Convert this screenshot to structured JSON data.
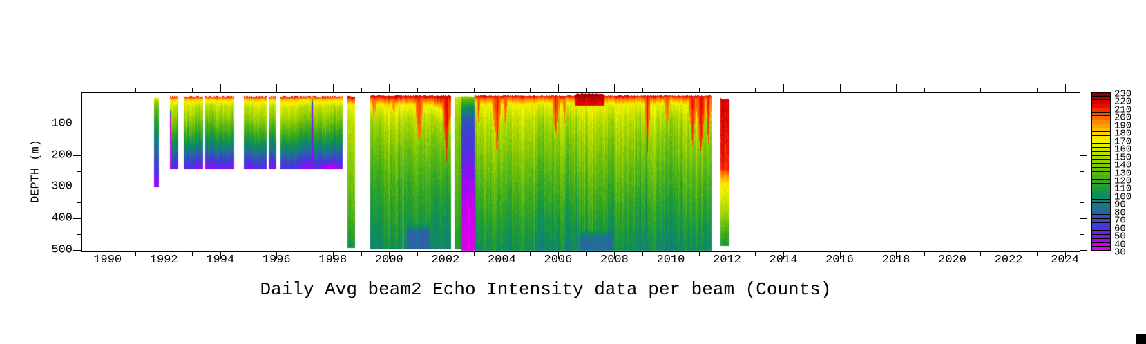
{
  "chart_data": {
    "type": "heatmap",
    "title": "Daily Avg beam2 Echo Intensity data per beam (Counts)",
    "xlabel": "",
    "ylabel": "DEPTH (m)",
    "x_range": [
      1989.05,
      2024.5
    ],
    "depth_range": [
      0,
      502
    ],
    "x_major_ticks": [
      1990,
      1992,
      1994,
      1996,
      1998,
      2000,
      2002,
      2004,
      2006,
      2008,
      2010,
      2012,
      2014,
      2016,
      2018,
      2020,
      2022,
      2024
    ],
    "x_tick_labels": [
      "1990",
      "1992",
      "1994",
      "1996",
      "1998",
      "2000",
      "2002",
      "2004",
      "2006",
      "2008",
      "2010",
      "2012",
      "2014",
      "2016",
      "2018",
      "2020",
      "2022",
      "2024"
    ],
    "x_minor_ticks": [
      1991,
      1993,
      1995,
      1997,
      1999,
      2001,
      2003,
      2005,
      2007,
      2009,
      2011,
      2013,
      2015,
      2017,
      2019,
      2021,
      2023
    ],
    "y_major_ticks": [
      100,
      200,
      300,
      400,
      500
    ],
    "y_tick_labels": [
      "100",
      "200",
      "300",
      "400",
      "500"
    ],
    "y_minor_ticks": [
      50,
      150,
      250,
      350,
      450
    ],
    "colorbar": {
      "min": 30,
      "max": 230,
      "label_step": 10,
      "labels": [
        "230",
        "220",
        "210",
        "200",
        "190",
        "180",
        "170",
        "160",
        "150",
        "140",
        "130",
        "120",
        "110",
        "100",
        "90",
        "80",
        "70",
        "60",
        "50",
        "40",
        "30"
      ],
      "cell_step": 5,
      "colors_bottom_to_top": [
        "#df00ea",
        "#c500f2",
        "#a408f3",
        "#8216f0",
        "#6424ea",
        "#4f31e1",
        "#413dd5",
        "#3948c7",
        "#3355b8",
        "#2c61a8",
        "#236d97",
        "#1a7886",
        "#128275",
        "#0e8a64",
        "#109153",
        "#1b9840",
        "#279f2e",
        "#36a724",
        "#47af1c",
        "#59b715",
        "#6cbf0e",
        "#80c708",
        "#94cf03",
        "#a8d700",
        "#bcdf00",
        "#cfe600",
        "#e2ee00",
        "#f3f500",
        "#f9e700",
        "#fdd200",
        "#ffbb00",
        "#ffa200",
        "#ff8800",
        "#fd6c00",
        "#f84e00",
        "#f22c00",
        "#e80c00",
        "#d40000",
        "#b80000",
        "#8c0000"
      ]
    },
    "profiles": {
      "early_strip": [
        [
          14,
          168
        ],
        [
          30,
          140
        ],
        [
          60,
          124
        ],
        [
          118,
          102
        ],
        [
          176,
          82
        ],
        [
          220,
          66
        ],
        [
          248,
          56
        ],
        [
          275,
          47
        ],
        [
          298,
          42
        ]
      ],
      "shallow": [
        [
          10,
          222
        ],
        [
          16,
          200
        ],
        [
          26,
          172
        ],
        [
          45,
          155
        ],
        [
          80,
          142
        ],
        [
          115,
          125
        ],
        [
          145,
          110
        ],
        [
          170,
          95
        ],
        [
          195,
          78
        ],
        [
          215,
          64
        ],
        [
          230,
          56
        ],
        [
          243,
          50
        ]
      ],
      "full_1998": [
        [
          10,
          225
        ],
        [
          20,
          205
        ],
        [
          32,
          182
        ],
        [
          48,
          162
        ],
        [
          90,
          152
        ],
        [
          180,
          145
        ],
        [
          280,
          135
        ],
        [
          380,
          124
        ],
        [
          450,
          112
        ],
        [
          490,
          103
        ]
      ],
      "full_deep": [
        [
          8,
          222
        ],
        [
          24,
          196
        ],
        [
          42,
          168
        ],
        [
          80,
          152
        ],
        [
          140,
          140
        ],
        [
          220,
          128
        ],
        [
          300,
          118
        ],
        [
          380,
          110
        ],
        [
          450,
          103
        ],
        [
          495,
          98
        ]
      ],
      "full_deep_red": [
        [
          8,
          225
        ],
        [
          30,
          200
        ],
        [
          55,
          170
        ],
        [
          100,
          152
        ],
        [
          160,
          140
        ],
        [
          240,
          128
        ],
        [
          320,
          116
        ],
        [
          420,
          106
        ],
        [
          495,
          100
        ]
      ],
      "green_strip": [
        [
          10,
          160
        ],
        [
          40,
          148
        ],
        [
          120,
          138
        ],
        [
          250,
          128
        ],
        [
          380,
          118
        ],
        [
          495,
          108
        ]
      ],
      "low_column": [
        [
          10,
          148
        ],
        [
          22,
          128
        ],
        [
          50,
          100
        ],
        [
          80,
          75
        ],
        [
          120,
          64
        ],
        [
          180,
          58
        ],
        [
          235,
          50
        ],
        [
          300,
          42
        ],
        [
          380,
          36
        ],
        [
          500,
          33
        ]
      ],
      "main_block": [
        [
          8,
          220
        ],
        [
          22,
          192
        ],
        [
          40,
          165
        ],
        [
          85,
          152
        ],
        [
          150,
          142
        ],
        [
          230,
          132
        ],
        [
          310,
          122
        ],
        [
          390,
          112
        ],
        [
          460,
          104
        ],
        [
          500,
          99
        ]
      ],
      "red_cap": [
        [
          2,
          226
        ],
        [
          42,
          212
        ]
      ],
      "late_strip": [
        [
          18,
          215
        ],
        [
          120,
          212
        ],
        [
          240,
          206
        ],
        [
          262,
          188
        ],
        [
          290,
          170
        ],
        [
          340,
          155
        ],
        [
          395,
          138
        ],
        [
          440,
          120
        ],
        [
          484,
          106
        ]
      ]
    },
    "segments": [
      {
        "name": "strip-1991",
        "x0": 1991.62,
        "x1": 1991.79,
        "d0": 14,
        "d1": 298,
        "profile": "early_strip",
        "noise": 6
      },
      {
        "name": "block-1992a",
        "x0": 1992.2,
        "x1": 1992.49,
        "d0": 10,
        "d1": 243,
        "profile": "shallow",
        "noise": 13,
        "patches": [
          {
            "x0": 1992.2,
            "x1": 1992.23,
            "d0": 50,
            "d1": 243,
            "v": 38
          }
        ]
      },
      {
        "name": "block-1992b",
        "x0": 1992.68,
        "x1": 1993.36,
        "d0": 10,
        "d1": 243,
        "profile": "shallow",
        "noise": 13
      },
      {
        "name": "block-1993",
        "x0": 1993.43,
        "x1": 1994.48,
        "d0": 10,
        "d1": 243,
        "profile": "shallow",
        "noise": 13
      },
      {
        "name": "block-1995a",
        "x0": 1994.82,
        "x1": 1995.63,
        "d0": 10,
        "d1": 243,
        "profile": "shallow",
        "noise": 13
      },
      {
        "name": "block-1995b",
        "x0": 1995.69,
        "x1": 1995.98,
        "d0": 10,
        "d1": 243,
        "profile": "shallow",
        "noise": 13
      },
      {
        "name": "block-1996",
        "x0": 1996.12,
        "x1": 1998.32,
        "d0": 10,
        "d1": 243,
        "profile": "shallow",
        "noise": 13,
        "patches": [
          {
            "x0": 1997.21,
            "x1": 1997.26,
            "d0": 10,
            "d1": 243,
            "v": 48
          },
          {
            "x0": 1997.6,
            "x1": 1998.15,
            "d0": 215,
            "d1": 243,
            "v": 40
          }
        ]
      },
      {
        "name": "strip-1998",
        "x0": 1998.5,
        "x1": 1998.77,
        "d0": 10,
        "d1": 490,
        "profile": "full_1998",
        "noise": 7
      },
      {
        "name": "block-1999",
        "x0": 1999.31,
        "x1": 2000.46,
        "d0": 8,
        "d1": 495,
        "profile": "full_deep",
        "noise": 14,
        "plumes": [
          {
            "y": 1999.45,
            "w": 0.1,
            "d": 80,
            "v": 205
          },
          {
            "y": 2000.15,
            "w": 0.1,
            "d": 70,
            "v": 200
          }
        ]
      },
      {
        "name": "block-2000",
        "x0": 2000.49,
        "x1": 2001.55,
        "d0": 8,
        "d1": 495,
        "profile": "full_deep",
        "noise": 14,
        "plumes": [
          {
            "y": 2001.05,
            "w": 0.13,
            "d": 180,
            "v": 210
          }
        ],
        "patches": [
          {
            "x0": 2000.6,
            "x1": 2001.45,
            "d0": 415,
            "d1": 495,
            "v": 78
          }
        ]
      },
      {
        "name": "block-2001",
        "x0": 2001.57,
        "x1": 2002.17,
        "d0": 8,
        "d1": 495,
        "profile": "full_deep_red",
        "noise": 13,
        "plumes": [
          {
            "y": 2002.02,
            "w": 0.16,
            "d": 195,
            "v": 215
          }
        ]
      },
      {
        "name": "strip-2002",
        "x0": 2002.29,
        "x1": 2002.54,
        "d0": 10,
        "d1": 495,
        "profile": "green_strip",
        "noise": 10
      },
      {
        "name": "low-column-2002",
        "x0": 2002.54,
        "x1": 2003.0,
        "d0": 10,
        "d1": 500,
        "profile": "low_column",
        "noise": 5
      },
      {
        "name": "block-2003-2011",
        "x0": 2003.0,
        "x1": 2011.43,
        "d0": 8,
        "d1": 500,
        "profile": "main_block",
        "noise": 15,
        "plumes": [
          {
            "y": 2003.15,
            "w": 0.08,
            "d": 100,
            "v": 205
          },
          {
            "y": 2003.8,
            "w": 0.15,
            "d": 180,
            "v": 212
          },
          {
            "y": 2004.1,
            "w": 0.08,
            "d": 110,
            "v": 205
          },
          {
            "y": 2005.9,
            "w": 0.12,
            "d": 150,
            "v": 212
          },
          {
            "y": 2006.2,
            "w": 0.08,
            "d": 100,
            "v": 205
          },
          {
            "y": 2009.15,
            "w": 0.09,
            "d": 200,
            "v": 212
          },
          {
            "y": 2009.85,
            "w": 0.1,
            "d": 110,
            "v": 208
          },
          {
            "y": 2010.75,
            "w": 0.13,
            "d": 170,
            "v": 212
          },
          {
            "y": 2011.05,
            "w": 0.16,
            "d": 190,
            "v": 215
          },
          {
            "y": 2011.32,
            "w": 0.1,
            "d": 150,
            "v": 210
          }
        ],
        "patches": [
          {
            "x0": 2006.75,
            "x1": 2007.9,
            "d0": 435,
            "d1": 500,
            "v": 82
          }
        ]
      },
      {
        "name": "red-cap-2007",
        "x0": 2006.58,
        "x1": 2007.63,
        "d0": 2,
        "d1": 42,
        "profile": "red_cap",
        "noise": 4
      },
      {
        "name": "strip-2011",
        "x0": 2011.75,
        "x1": 2012.05,
        "d0": 18,
        "d1": 484,
        "profile": "late_strip",
        "noise": 5
      }
    ]
  },
  "decorations": {
    "corner_box_color": "#000000"
  }
}
